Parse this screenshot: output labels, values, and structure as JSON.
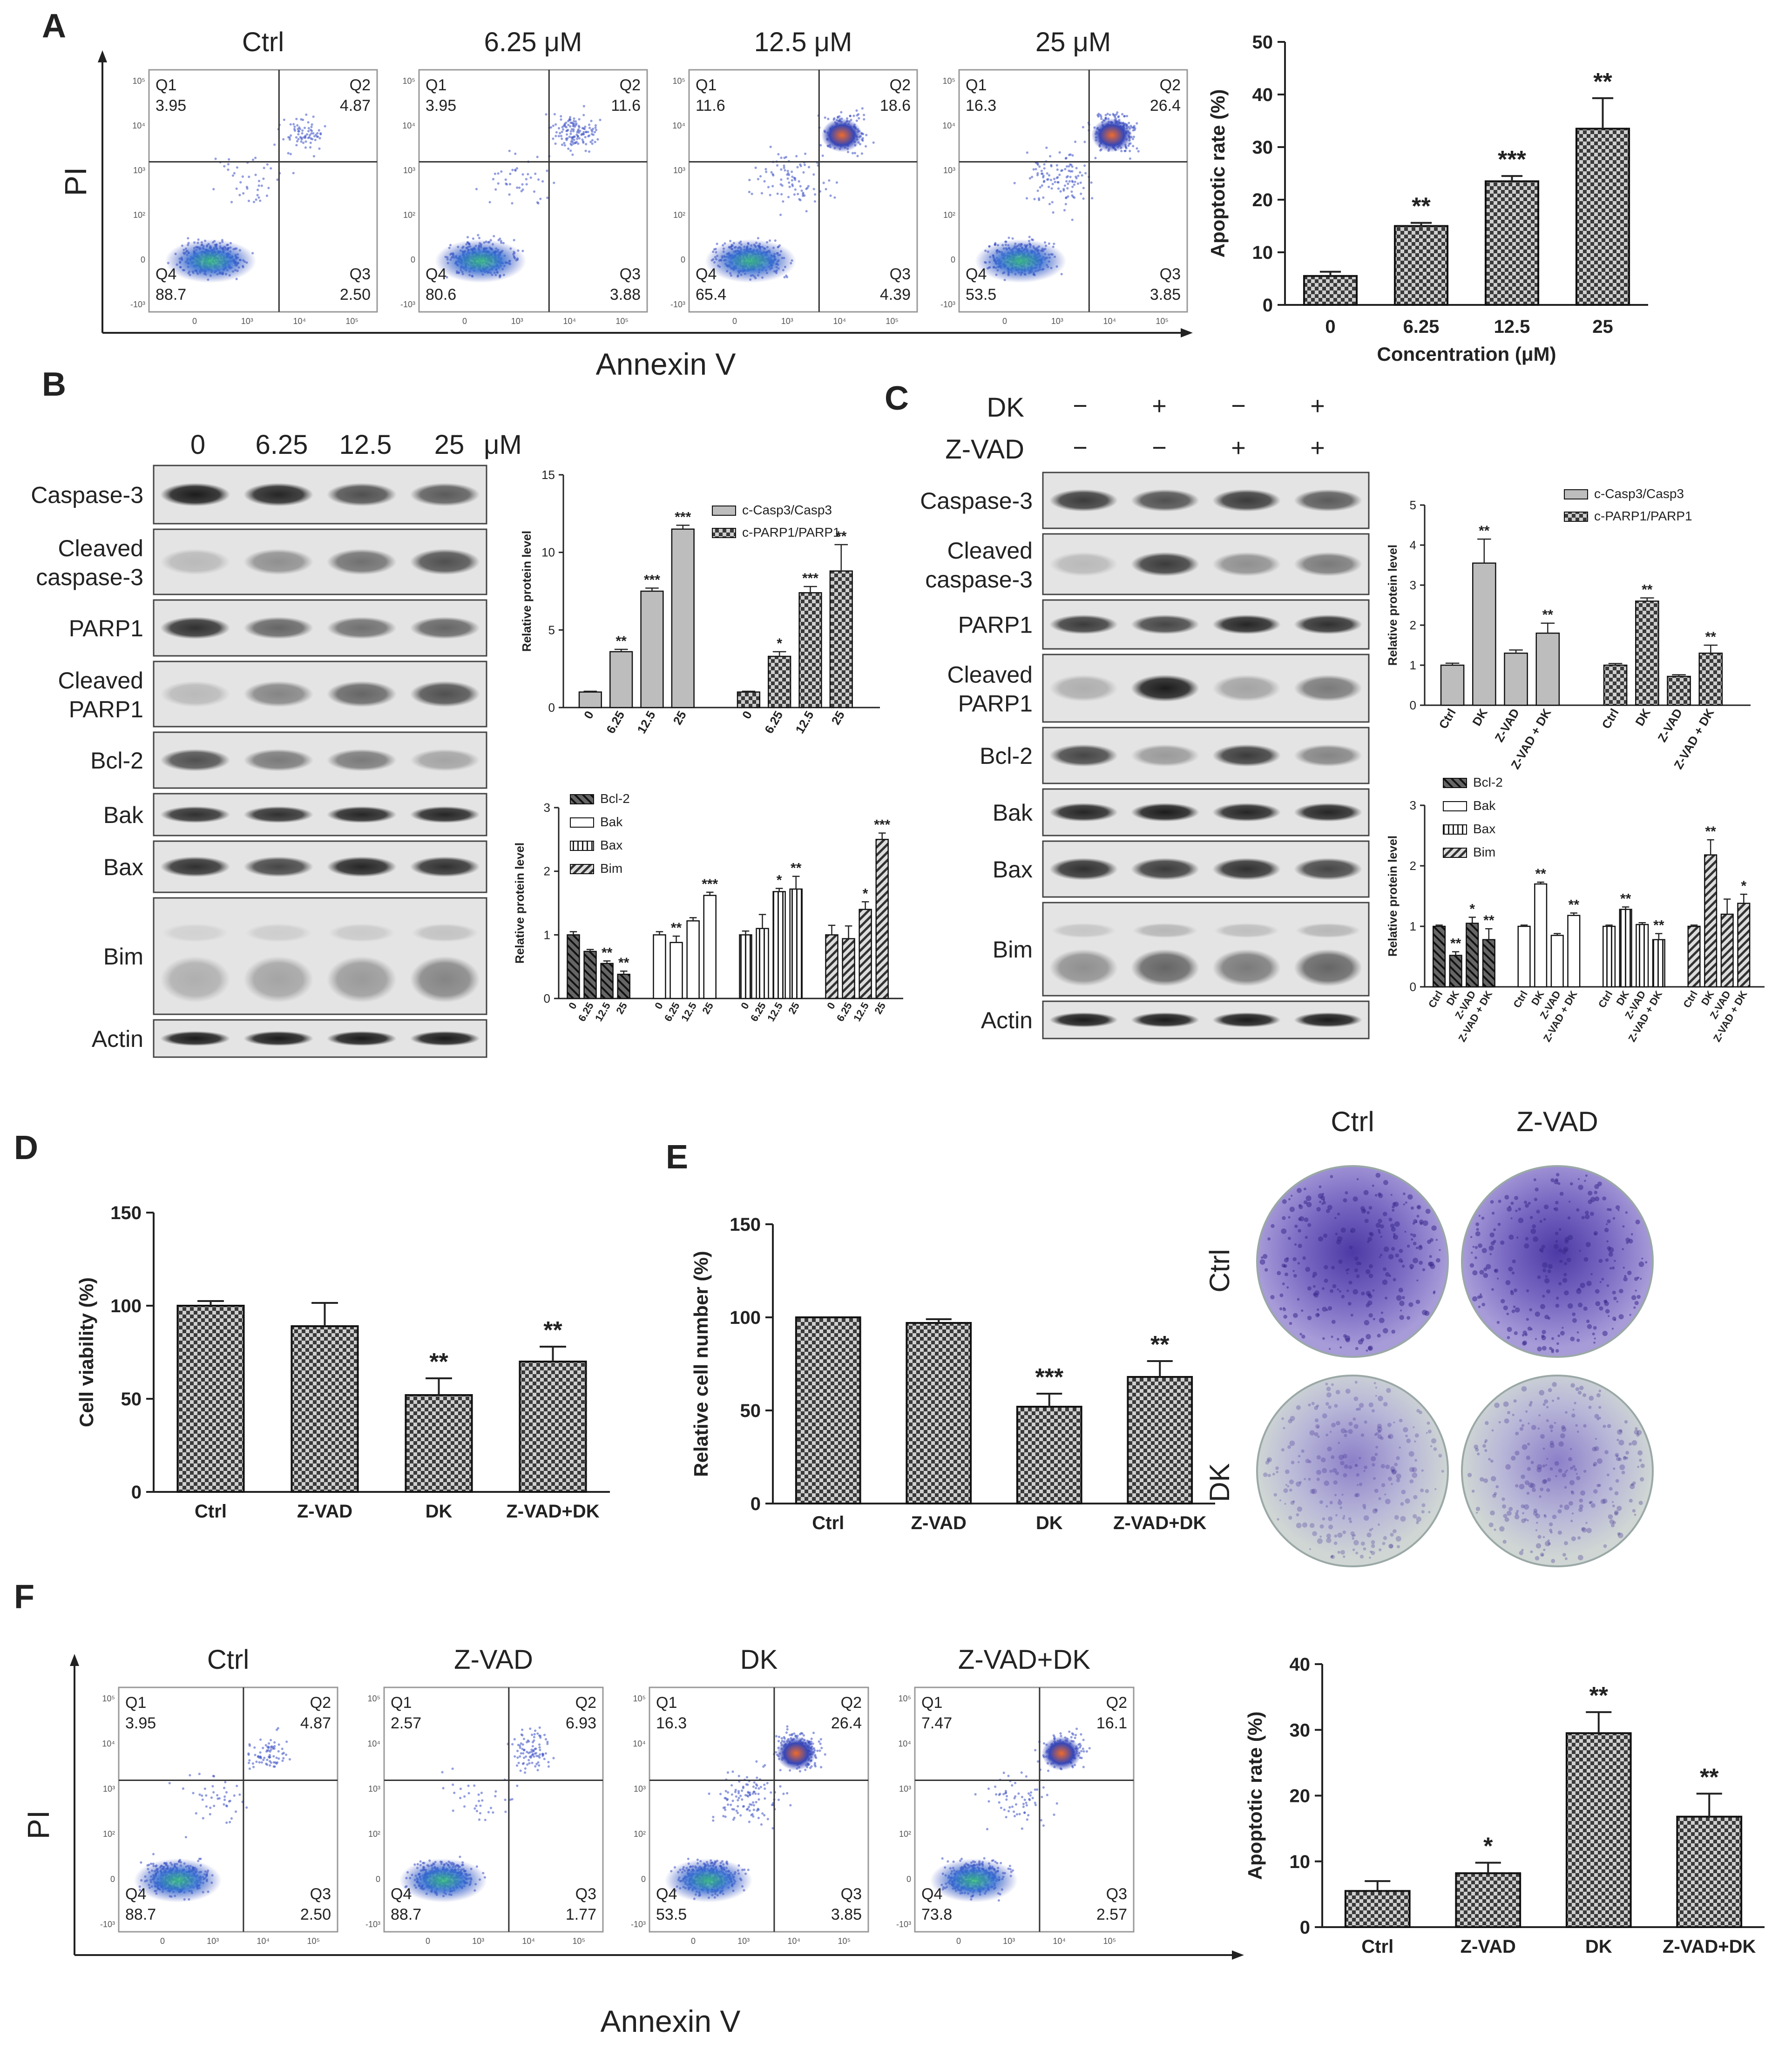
{
  "panel_letters": [
    "A",
    "B",
    "C",
    "D",
    "E",
    "F"
  ],
  "panelA": {
    "flow_titles": [
      "Ctrl",
      "6.25 μM",
      "12.5 μM",
      "25 μM"
    ],
    "y_axis_label": "PI",
    "x_axis_label": "Annexin V",
    "quadrant_names": [
      "Q1",
      "Q2",
      "Q3",
      "Q4"
    ],
    "quadrants": [
      {
        "Q1": "3.95",
        "Q2": "4.87",
        "Q3": "2.50",
        "Q4": "88.7"
      },
      {
        "Q1": "3.95",
        "Q2": "11.6",
        "Q3": "3.88",
        "Q4": "80.6"
      },
      {
        "Q1": "11.6",
        "Q2": "18.6",
        "Q3": "4.39",
        "Q4": "65.4"
      },
      {
        "Q1": "16.3",
        "Q2": "26.4",
        "Q3": "3.85",
        "Q4": "53.5"
      }
    ]
  },
  "panelB": {
    "conc_labels": [
      "0",
      "6.25",
      "12.5",
      "25"
    ],
    "unit": "μM",
    "blot_labels": [
      "Caspase-3",
      "Cleaved\ncaspase-3",
      "PARP1",
      "Cleaved\nPARP1",
      "Bcl-2",
      "Bak",
      "Bax",
      "Bim",
      "Actin"
    ]
  },
  "panelC": {
    "row_labels": [
      "DK",
      "Z-VAD"
    ],
    "dk_signs": [
      "−",
      "+",
      "−",
      "+"
    ],
    "zvad_signs": [
      "−",
      "−",
      "+",
      "+"
    ],
    "blot_labels": [
      "Caspase-3",
      "Cleaved\ncaspase-3",
      "PARP1",
      "Cleaved\nPARP1",
      "Bcl-2",
      "Bak",
      "Bax",
      "Bim",
      "Actin"
    ]
  },
  "panelE": {
    "col_labels": [
      "Ctrl",
      "Z-VAD"
    ],
    "row_labels": [
      "Ctrl",
      "DK"
    ]
  },
  "panelF": {
    "flow_titles": [
      "Ctrl",
      "Z-VAD",
      "DK",
      "Z-VAD+DK"
    ],
    "y_axis_label": "PI",
    "x_axis_label": "Annexin V",
    "quadrants": [
      {
        "Q1": "3.95",
        "Q2": "4.87",
        "Q3": "2.50",
        "Q4": "88.7"
      },
      {
        "Q1": "2.57",
        "Q2": "6.93",
        "Q3": "1.77",
        "Q4": "88.7"
      },
      {
        "Q1": "16.3",
        "Q2": "26.4",
        "Q3": "3.85",
        "Q4": "53.5"
      },
      {
        "Q1": "7.47",
        "Q2": "16.1",
        "Q3": "2.57",
        "Q4": "73.8"
      }
    ]
  },
  "chart_data": [
    {
      "id": "A_apoptosis",
      "type": "bar",
      "categories": [
        "0",
        "6.25",
        "12.5",
        "25"
      ],
      "values": [
        5.5,
        15,
        23.5,
        33.5
      ],
      "errors": [
        0.8,
        0.6,
        1.0,
        5.8
      ],
      "significance": [
        "",
        "**",
        "***",
        "**"
      ],
      "xlabel": "Concentration (μM)",
      "ylabel": "Apoptotic rate (%)",
      "ylim": [
        0,
        50
      ],
      "yticks": [
        0,
        10,
        20,
        30,
        40,
        50
      ]
    },
    {
      "id": "B_cleaved",
      "type": "bar",
      "groups": [
        "c-Casp3/Casp3",
        "c-PARP1/PARP1"
      ],
      "categories": [
        "0",
        "6.25",
        "12.5",
        "25"
      ],
      "series": [
        {
          "name": "c-Casp3/Casp3",
          "values": [
            1,
            3.6,
            7.5,
            11.5
          ],
          "errors": [
            0.05,
            0.15,
            0.2,
            0.25
          ],
          "significance": [
            "",
            "**",
            "***",
            "***"
          ]
        },
        {
          "name": "c-PARP1/PARP1",
          "values": [
            1,
            3.3,
            7.4,
            8.8
          ],
          "errors": [
            0.05,
            0.3,
            0.4,
            1.7
          ],
          "significance": [
            "",
            "*",
            "***",
            "**"
          ]
        }
      ],
      "ylabel": "Relative protein level",
      "ylim": [
        0,
        15
      ],
      "yticks": [
        0,
        5,
        10,
        15
      ]
    },
    {
      "id": "B_bcl",
      "type": "bar",
      "groups": [
        "Bcl-2",
        "Bak",
        "Bax",
        "Bim"
      ],
      "categories": [
        "0",
        "6.25",
        "12.5",
        "25"
      ],
      "series": [
        {
          "name": "Bcl-2",
          "values": [
            1,
            0.74,
            0.55,
            0.38
          ],
          "errors": [
            0.05,
            0.03,
            0.04,
            0.05
          ],
          "significance": [
            "",
            "",
            "**",
            "**"
          ]
        },
        {
          "name": "Bak",
          "values": [
            1,
            0.88,
            1.22,
            1.62
          ],
          "errors": [
            0.05,
            0.1,
            0.05,
            0.05
          ],
          "significance": [
            "",
            "**",
            "",
            "***"
          ]
        },
        {
          "name": "Bax",
          "values": [
            1,
            1.1,
            1.68,
            1.72
          ],
          "errors": [
            0.06,
            0.22,
            0.05,
            0.2
          ],
          "significance": [
            "",
            "",
            "*",
            "**"
          ]
        },
        {
          "name": "Bim",
          "values": [
            1,
            0.94,
            1.4,
            2.5
          ],
          "errors": [
            0.15,
            0.2,
            0.12,
            0.1
          ],
          "significance": [
            "",
            "",
            "*",
            "***"
          ]
        }
      ],
      "legend": [
        "Bcl-2",
        "Bak",
        "Bax",
        "Bim"
      ],
      "ylabel": "Relative protein level",
      "ylim": [
        0,
        3
      ],
      "yticks": [
        0,
        1,
        2,
        3
      ]
    },
    {
      "id": "C_cleaved",
      "type": "bar",
      "groups": [
        "c-Casp3/Casp3",
        "c-PARP1/PARP1"
      ],
      "categories": [
        "Ctrl",
        "DK",
        "Z-VAD",
        "Z-VAD + DK"
      ],
      "series": [
        {
          "name": "c-Casp3/Casp3",
          "values": [
            1,
            3.55,
            1.3,
            1.8
          ],
          "errors": [
            0.05,
            0.6,
            0.08,
            0.25
          ],
          "significance": [
            "",
            "**",
            "",
            "**"
          ]
        },
        {
          "name": "c-PARP1/PARP1",
          "values": [
            1,
            2.6,
            0.72,
            1.3
          ],
          "errors": [
            0.04,
            0.08,
            0.04,
            0.2
          ],
          "significance": [
            "",
            "**",
            "",
            "**"
          ]
        }
      ],
      "ylabel": "Relative protein level",
      "ylim": [
        0,
        5
      ],
      "yticks": [
        0,
        1,
        2,
        3,
        4,
        5
      ]
    },
    {
      "id": "C_bcl",
      "type": "bar",
      "groups": [
        "Bcl-2",
        "Bak",
        "Bax",
        "Bim"
      ],
      "categories": [
        "Ctrl",
        "DK",
        "Z-VAD",
        "Z-VAD + DK"
      ],
      "series": [
        {
          "name": "Bcl-2",
          "values": [
            1,
            0.52,
            1.05,
            0.78
          ],
          "errors": [
            0.02,
            0.06,
            0.1,
            0.18
          ],
          "significance": [
            "",
            "**",
            "*",
            "**"
          ]
        },
        {
          "name": "Bak",
          "values": [
            1,
            1.7,
            0.85,
            1.18
          ],
          "errors": [
            0.02,
            0.03,
            0.03,
            0.04
          ],
          "significance": [
            "",
            "**",
            "",
            "**"
          ]
        },
        {
          "name": "Bax",
          "values": [
            1,
            1.28,
            1.03,
            0.78
          ],
          "errors": [
            0.02,
            0.04,
            0.03,
            0.1
          ],
          "significance": [
            "",
            "**",
            "",
            "**"
          ]
        },
        {
          "name": "Bim",
          "values": [
            1,
            2.18,
            1.2,
            1.38
          ],
          "errors": [
            0.02,
            0.25,
            0.25,
            0.15
          ],
          "significance": [
            "",
            "**",
            "",
            "*"
          ]
        }
      ],
      "legend": [
        "Bcl-2",
        "Bak",
        "Bax",
        "Bim"
      ],
      "ylabel": "Relative protein level",
      "ylim": [
        0,
        3
      ],
      "yticks": [
        0,
        1,
        2,
        3
      ]
    },
    {
      "id": "D_viability",
      "type": "bar",
      "categories": [
        "Ctrl",
        "Z-VAD",
        "DK",
        "Z-VAD+DK"
      ],
      "values": [
        100,
        89,
        52,
        70
      ],
      "errors": [
        2.5,
        12.5,
        9,
        8
      ],
      "significance": [
        "",
        "",
        "**",
        "**"
      ],
      "ylabel": "Cell viability (%)",
      "ylim": [
        0,
        150
      ],
      "yticks": [
        0,
        50,
        100,
        150
      ]
    },
    {
      "id": "E_cellnumber",
      "type": "bar",
      "categories": [
        "Ctrl",
        "Z-VAD",
        "DK",
        "Z-VAD+DK"
      ],
      "values": [
        100,
        97,
        52,
        68
      ],
      "errors": [
        0,
        2,
        7,
        8.5
      ],
      "significance": [
        "",
        "",
        "***",
        "**"
      ],
      "ylabel": "Relative cell number (%)",
      "ylim": [
        0,
        150
      ],
      "yticks": [
        0,
        50,
        100,
        150
      ]
    },
    {
      "id": "F_apoptosis",
      "type": "bar",
      "categories": [
        "Ctrl",
        "Z-VAD",
        "DK",
        "Z-VAD+DK"
      ],
      "values": [
        5.5,
        8.2,
        29.5,
        16.8
      ],
      "errors": [
        1.5,
        1.6,
        3.2,
        3.5
      ],
      "significance": [
        "",
        "*",
        "**",
        "**"
      ],
      "ylabel": "Apoptotic rate (%)",
      "ylim": [
        0,
        40
      ],
      "yticks": [
        0,
        10,
        20,
        30,
        40
      ]
    }
  ]
}
